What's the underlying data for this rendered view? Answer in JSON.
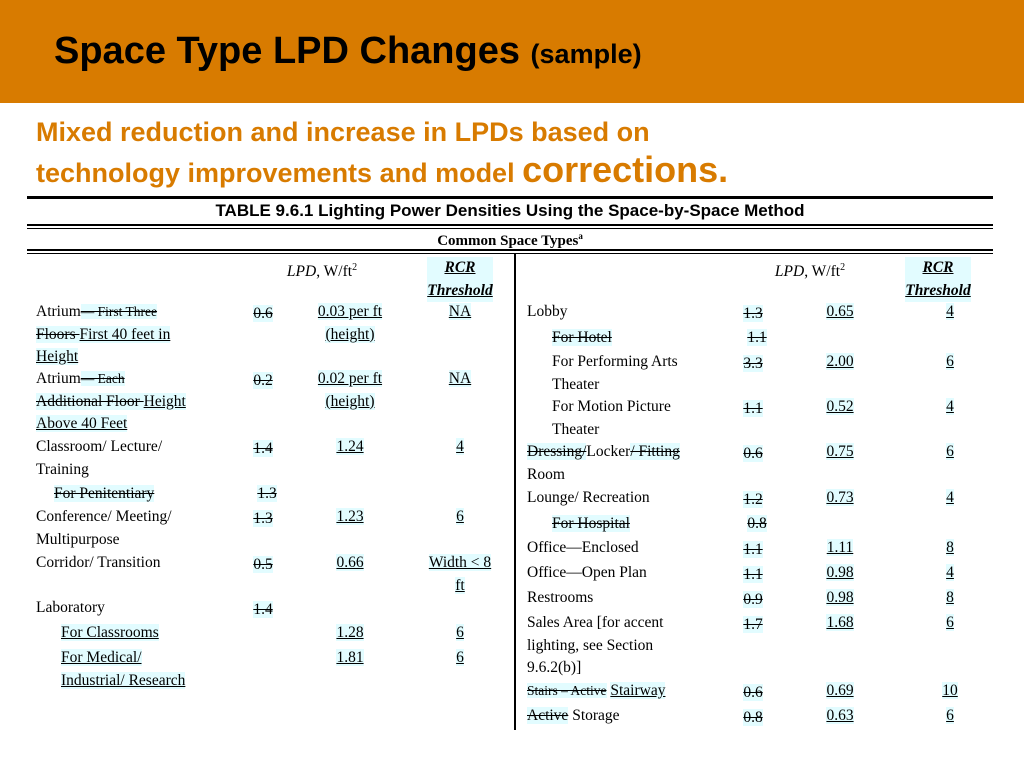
{
  "slide": {
    "title_main": "Space Type LPD Changes",
    "title_note": "(sample)",
    "subtitle_line1": "Mixed reduction and increase in LPDs based on",
    "subtitle_line2_a": "technology improvements and model ",
    "subtitle_line2_b": "corrections."
  },
  "table": {
    "title": "TABLE 9.6.1  Lighting Power Densities Using the Space-by-Space Method",
    "common_label": "Common Space Types",
    "common_sup": "a",
    "hdr_lpd_italic": "LPD",
    "hdr_lpd_unit": ", W/ft",
    "hdr_lpd_sup": "2",
    "hdr_rcr_1": "RCR",
    "hdr_rcr_2": "Threshold"
  },
  "left": {
    "atrium1_a": "Atrium",
    "atrium1_b": "— First Three",
    "atrium1_c": "Floors ",
    "atrium1_d": "First 40 feet in",
    "atrium1_e": "Height",
    "atrium1_old": "0.6",
    "atrium1_new1": "0.03 per ft",
    "atrium1_new2": "(height)",
    "atrium1_rcr": "NA",
    "atrium2_a": "Atrium",
    "atrium2_b": "— Each",
    "atrium2_c": "Additional Floor ",
    "atrium2_d": "Height",
    "atrium2_e": "Above 40 Feet",
    "atrium2_old": "0.2",
    "atrium2_new1": "0.02 per ft",
    "atrium2_new2": "(height)",
    "atrium2_rcr": "NA",
    "classroom_1": "Classroom/ Lecture/",
    "classroom_2": "Training",
    "classroom_old": "1.4",
    "classroom_new": "1.24",
    "classroom_rcr": "4",
    "penitentiary": "For Penitentiary",
    "penitentiary_old": "1.3",
    "conference_1": "Conference/ Meeting/",
    "conference_2": "Multipurpose",
    "conference_old": "1.3",
    "conference_new": "1.23",
    "conference_rcr": "6",
    "corridor": "Corridor/ Transition",
    "corridor_old": "0.5",
    "corridor_new": "0.66",
    "corridor_rcr1": "Width < 8",
    "corridor_rcr2": "ft",
    "laboratory": "Laboratory",
    "laboratory_old": "1.4",
    "classrooms": "For Classrooms",
    "classrooms_new": "1.28",
    "classrooms_rcr": "6",
    "medical_1": "For Medical/",
    "medical_2": "Industrial/ Research",
    "medical_new": "1.81",
    "medical_rcr": "6"
  },
  "right": {
    "lobby": "Lobby",
    "lobby_old": "1.3",
    "lobby_new": "0.65",
    "lobby_rcr": "4",
    "hotel": "For Hotel",
    "hotel_old": "1.1",
    "perf_1": "For Performing Arts",
    "perf_2": "Theater",
    "perf_old": "3.3",
    "perf_new": "2.00",
    "perf_rcr": "6",
    "motion_1": "For Motion Picture",
    "motion_2": "Theater",
    "motion_old": "1.1",
    "motion_new": "0.52",
    "motion_rcr": "4",
    "dress_a": "Dressing/",
    "dress_b": "Locker",
    "dress_c": "/ Fitting",
    "dress_d": "Room",
    "dress_old": "0.6",
    "dress_new": "0.75",
    "dress_rcr": "6",
    "lounge": "Lounge/ Recreation",
    "lounge_old": "1.2",
    "lounge_new": "0.73",
    "lounge_rcr": "4",
    "hospital": "For Hospital",
    "hospital_old": "0.8",
    "enclosed": "Office—Enclosed",
    "enclosed_old": "1.1",
    "enclosed_new": "1.11",
    "enclosed_rcr": "8",
    "openplan": "Office—Open Plan",
    "openplan_old": "1.1",
    "openplan_new": "0.98",
    "openplan_rcr": "4",
    "restrooms": "Restrooms",
    "restrooms_old": "0.9",
    "restrooms_new": "0.98",
    "restrooms_rcr": "8",
    "sales_1": "Sales Area [for accent",
    "sales_2": "lighting, see Section",
    "sales_3": "9.6.2(b)]",
    "sales_old": "1.7",
    "sales_new": "1.68",
    "sales_rcr": "6",
    "stairs_a": "Stairs – Active",
    "stairs_b": "Stairway",
    "stairs_old": "0.6",
    "stairs_new": "0.69",
    "stairs_rcr": "10",
    "storage_a": "Active",
    "storage_b": "Storage",
    "storage_old": "0.8",
    "storage_new": "0.63",
    "storage_rcr": "6"
  }
}
